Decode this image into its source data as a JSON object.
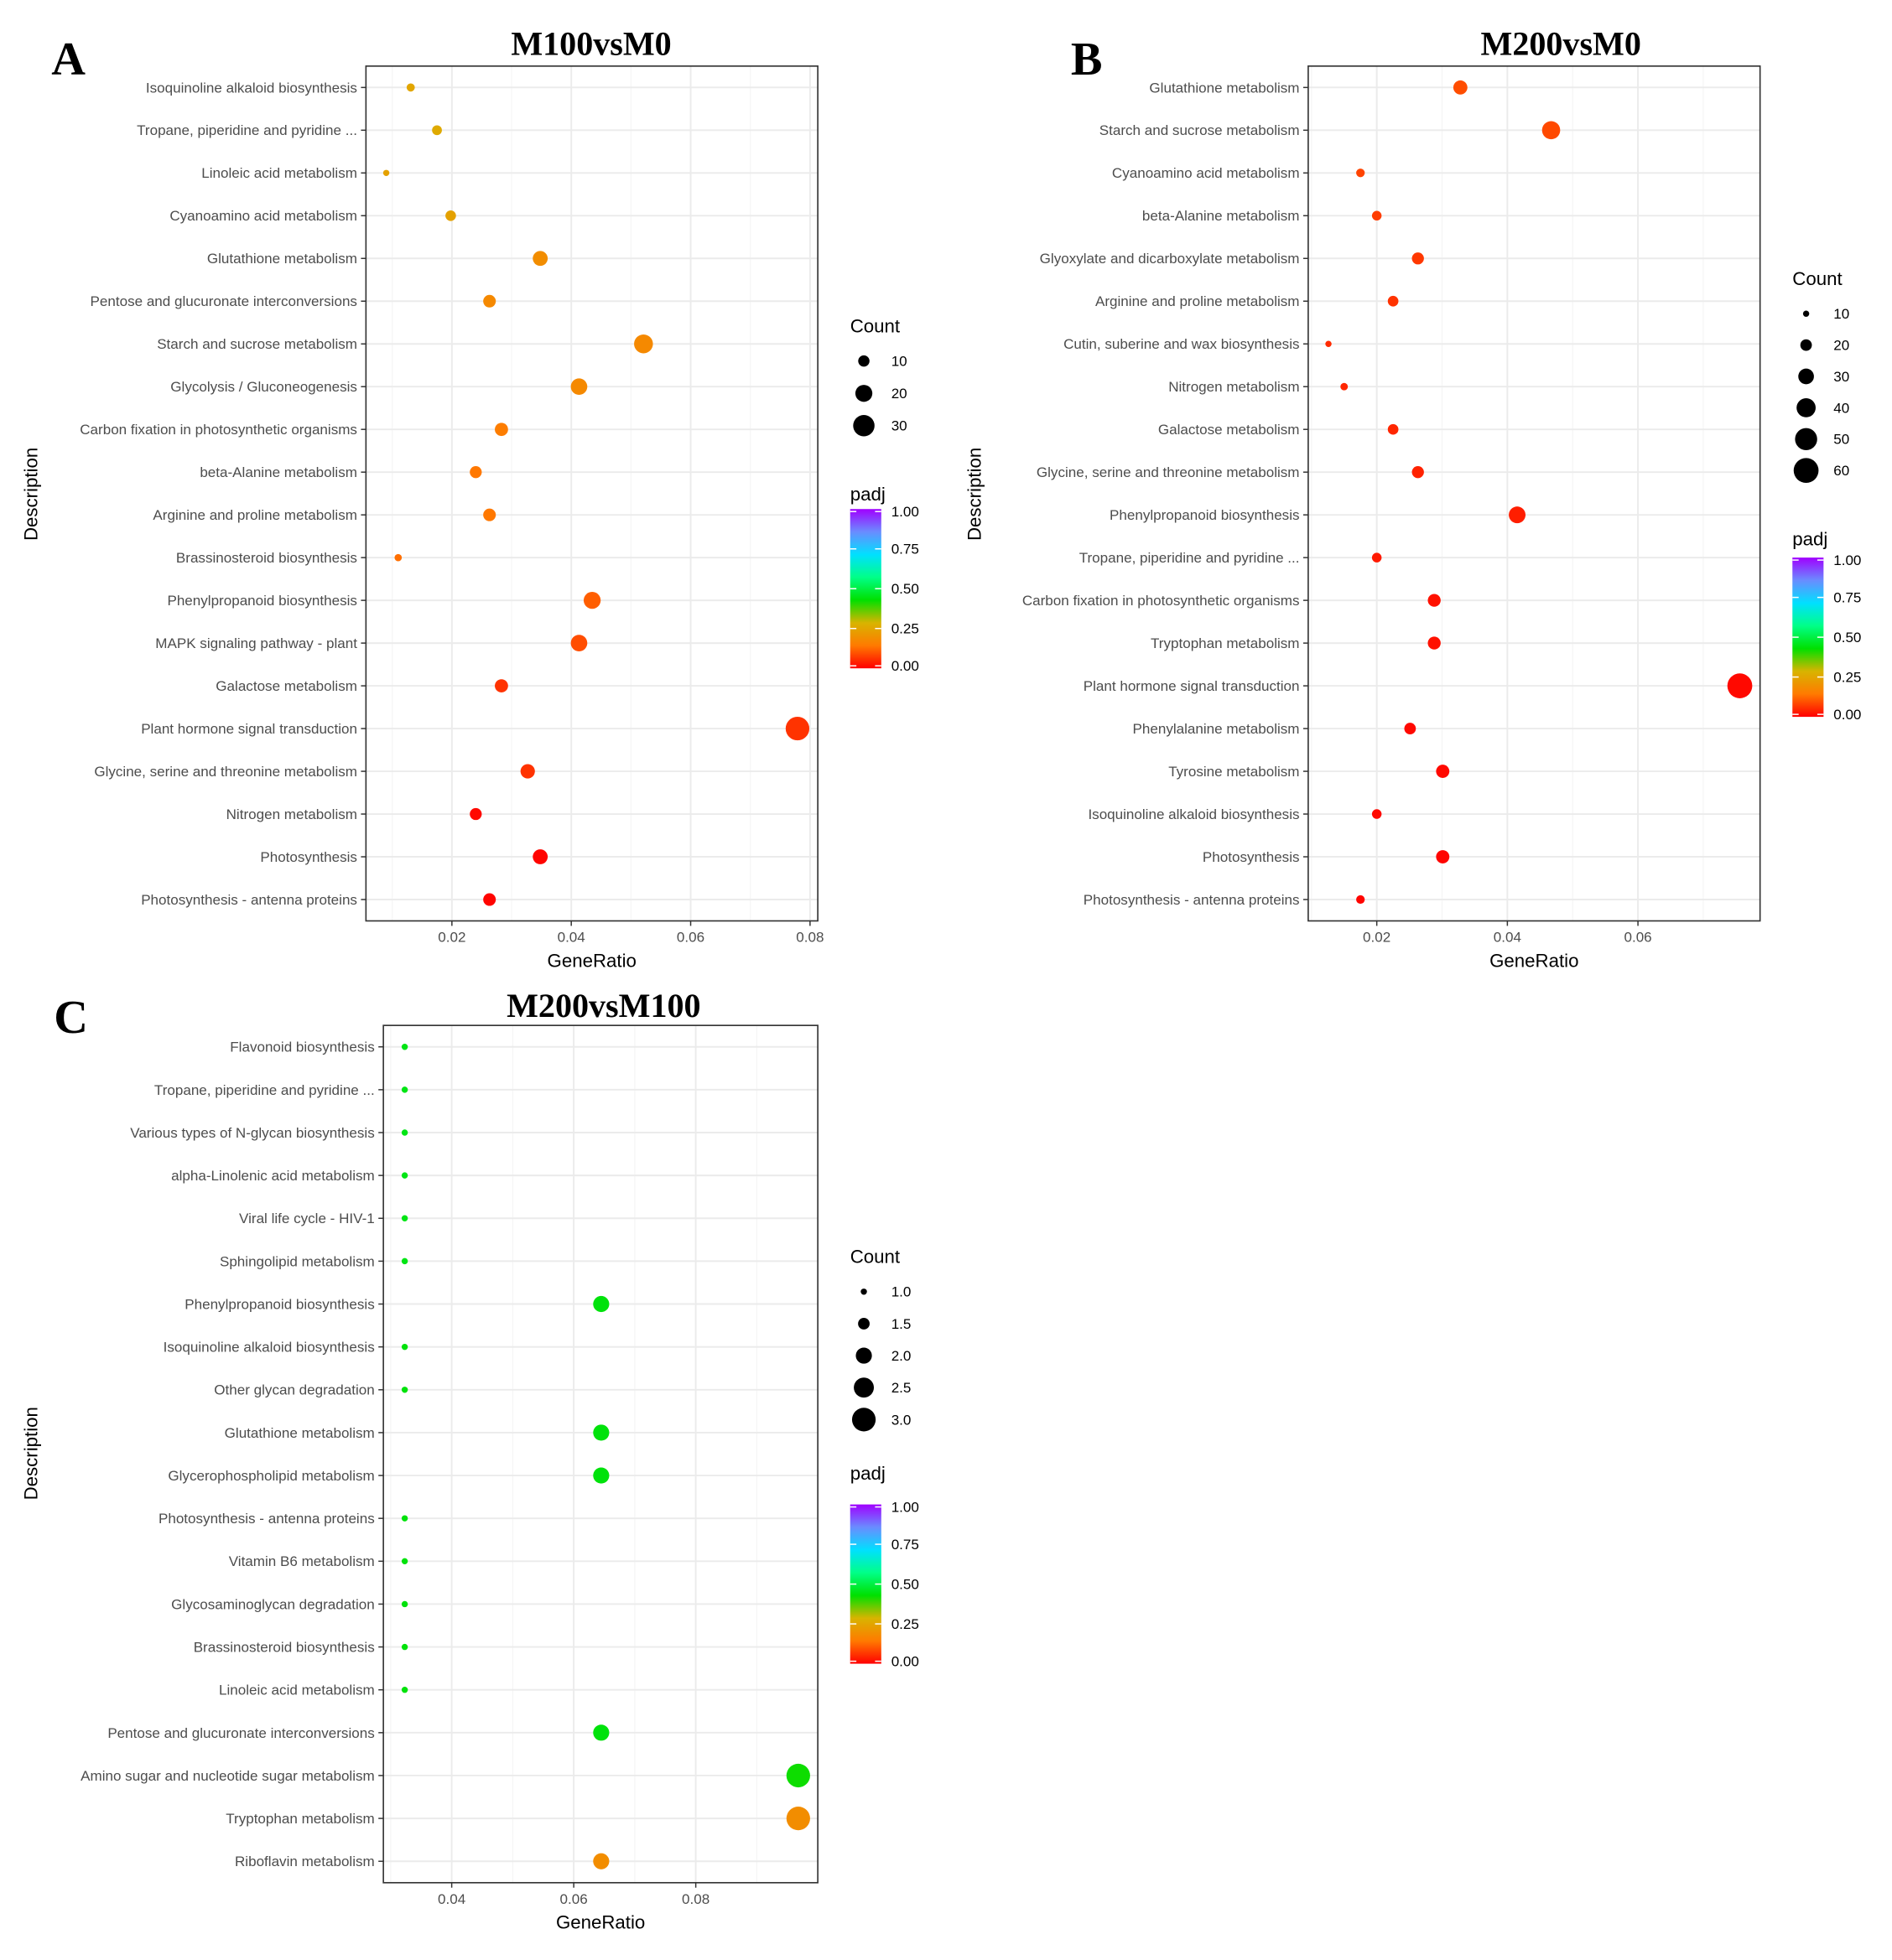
{
  "chart_data": [
    {
      "type": "scatter",
      "panel_label": "A",
      "title": "M100vsM0",
      "xlabel": "GeneRatio",
      "ylabel": "Description",
      "xlim": [
        0.0056,
        0.0813
      ],
      "xticks": [
        0.02,
        0.04,
        0.06,
        0.08
      ],
      "xtick_labels": [
        "0.02",
        "0.04",
        "0.06",
        "0.08"
      ],
      "grid": true,
      "legend_placement": "right",
      "size_legend": {
        "title": "Count",
        "breaks": [
          10,
          20,
          30
        ],
        "labels": [
          "10",
          "20",
          "30"
        ]
      },
      "color_legend": {
        "title": "padj",
        "breaks": [
          0,
          0.25,
          0.5,
          0.75,
          1
        ],
        "labels": [
          "0.00",
          "0.25",
          "0.50",
          "0.75",
          "1.00"
        ]
      },
      "categories": [
        "Isoquinoline alkaloid biosynthesis",
        "Tropane, piperidine and pyridine ...",
        "Linoleic acid metabolism",
        "Cyanoamino acid metabolism",
        "Glutathione metabolism",
        "Pentose and glucuronate interconversions",
        "Starch and sucrose metabolism",
        "Glycolysis / Gluconeogenesis",
        "Carbon fixation in photosynthetic organisms",
        "beta-Alanine metabolism",
        "Arginine and proline metabolism",
        "Brassinosteroid biosynthesis",
        "Phenylpropanoid biosynthesis",
        "MAPK signaling pathway - plant",
        "Galactose metabolism",
        "Plant hormone signal transduction",
        "Glycine, serine and threonine metabolism",
        "Nitrogen metabolism",
        "Photosynthesis",
        "Photosynthesis - antenna proteins"
      ],
      "gene_ratio": [
        0.0131,
        0.0175,
        0.009,
        0.0198,
        0.0348,
        0.0263,
        0.0521,
        0.0413,
        0.0283,
        0.024,
        0.0263,
        0.011,
        0.0435,
        0.0413,
        0.0283,
        0.0779,
        0.0327,
        0.024,
        0.0348,
        0.0263
      ],
      "count": [
        6,
        8,
        4,
        9,
        16,
        12,
        24,
        19,
        13,
        11,
        12,
        5,
        20,
        19,
        13,
        36,
        15,
        11,
        16,
        12
      ],
      "padj": [
        0.25,
        0.26,
        0.24,
        0.24,
        0.19,
        0.18,
        0.18,
        0.18,
        0.15,
        0.14,
        0.14,
        0.13,
        0.11,
        0.09,
        0.06,
        0.06,
        0.06,
        0.01,
        0.005,
        0.005
      ]
    },
    {
      "type": "scatter",
      "panel_label": "B",
      "title": "M200vsM0",
      "xlabel": "GeneRatio",
      "ylabel": "Description",
      "xlim": [
        0.0095,
        0.0787
      ],
      "xticks": [
        0.02,
        0.04,
        0.06
      ],
      "xtick_labels": [
        "0.02",
        "0.04",
        "0.06"
      ],
      "grid": true,
      "legend_placement": "right",
      "size_legend": {
        "title": "Count",
        "breaks": [
          10,
          20,
          30,
          40,
          50,
          60
        ],
        "labels": [
          "10",
          "20",
          "30",
          "40",
          "50",
          "60"
        ]
      },
      "color_legend": {
        "title": "padj",
        "breaks": [
          0,
          0.25,
          0.5,
          0.75,
          1
        ],
        "labels": [
          "0.00",
          "0.25",
          "0.50",
          "0.75",
          "1.00"
        ]
      },
      "categories": [
        "Glutathione metabolism",
        "Starch and sucrose metabolism",
        "Cyanoamino acid metabolism",
        "beta-Alanine metabolism",
        "Glyoxylate and dicarboxylate metabolism",
        "Arginine and proline metabolism",
        "Cutin, suberine and wax biosynthesis",
        "Nitrogen metabolism",
        "Galactose metabolism",
        "Glycine, serine and threonine metabolism",
        "Phenylpropanoid biosynthesis",
        "Tropane, piperidine and pyridine ...",
        "Carbon fixation in photosynthetic organisms",
        "Tryptophan metabolism",
        "Plant hormone signal transduction",
        "Phenylalanine metabolism",
        "Tyrosine metabolism",
        "Isoquinoline alkaloid biosynthesis",
        "Photosynthesis",
        "Photosynthesis - antenna proteins"
      ],
      "gene_ratio": [
        0.0328,
        0.0467,
        0.0175,
        0.02,
        0.0263,
        0.0225,
        0.0126,
        0.015,
        0.0225,
        0.0263,
        0.0415,
        0.02,
        0.0288,
        0.0288,
        0.0756,
        0.0251,
        0.0301,
        0.02,
        0.0301,
        0.0175
      ],
      "count": [
        26,
        37,
        14,
        16,
        21,
        18,
        10,
        12,
        18,
        21,
        33,
        16,
        23,
        23,
        60,
        20,
        24,
        16,
        24,
        14
      ],
      "padj": [
        0.09,
        0.085,
        0.08,
        0.07,
        0.065,
        0.06,
        0.05,
        0.045,
        0.045,
        0.04,
        0.035,
        0.03,
        0.02,
        0.02,
        0.01,
        0.01,
        0.01,
        0.01,
        0.005,
        0.005
      ]
    },
    {
      "type": "scatter",
      "panel_label": "C",
      "title": "M200vsM100",
      "xlabel": "GeneRatio",
      "ylabel": "Description",
      "xlim": [
        0.0288,
        0.1
      ],
      "xticks": [
        0.04,
        0.06,
        0.08
      ],
      "xtick_labels": [
        "0.04",
        "0.06",
        "0.08"
      ],
      "grid": true,
      "legend_placement": "right",
      "size_legend": {
        "title": "Count",
        "breaks": [
          1.0,
          1.5,
          2.0,
          2.5,
          3.0
        ],
        "labels": [
          "1.0",
          "1.5",
          "2.0",
          "2.5",
          "3.0"
        ]
      },
      "color_legend": {
        "title": "padj",
        "breaks": [
          0,
          0.25,
          0.5,
          0.75,
          1
        ],
        "labels": [
          "0.00",
          "0.25",
          "0.50",
          "0.75",
          "1.00"
        ]
      },
      "categories": [
        "Flavonoid biosynthesis",
        "Tropane, piperidine and pyridine ...",
        "Various types of N-glycan biosynthesis",
        "alpha-Linolenic acid metabolism",
        "Viral life cycle - HIV-1",
        "Sphingolipid metabolism",
        "Phenylpropanoid biosynthesis",
        "Isoquinoline alkaloid biosynthesis",
        "Other glycan degradation",
        "Glutathione metabolism",
        "Glycerophospholipid metabolism",
        "Photosynthesis - antenna proteins",
        "Vitamin B6 metabolism",
        "Glycosaminoglycan degradation",
        "Brassinosteroid biosynthesis",
        "Linoleic acid metabolism",
        "Pentose and glucuronate interconversions",
        "Amino sugar and nucleotide sugar metabolism",
        "Tryptophan metabolism",
        "Riboflavin metabolism"
      ],
      "gene_ratio": [
        0.0323,
        0.0323,
        0.0323,
        0.0323,
        0.0323,
        0.0323,
        0.0645,
        0.0323,
        0.0323,
        0.0645,
        0.0645,
        0.0323,
        0.0323,
        0.0323,
        0.0323,
        0.0323,
        0.0645,
        0.0968,
        0.0968,
        0.0645
      ],
      "count": [
        1,
        1,
        1,
        1,
        1,
        1,
        2,
        1,
        1,
        2,
        2,
        1,
        1,
        1,
        1,
        1,
        2,
        3,
        3,
        2
      ],
      "padj": [
        0.45,
        0.45,
        0.45,
        0.45,
        0.45,
        0.45,
        0.44,
        0.44,
        0.44,
        0.44,
        0.44,
        0.44,
        0.44,
        0.44,
        0.44,
        0.44,
        0.44,
        0.42,
        0.19,
        0.19
      ]
    }
  ],
  "colors": {
    "padj_scale": [
      "#ff0000",
      "#ff7a00",
      "#d8b400",
      "#00e000",
      "#00ff88",
      "#00e0ff",
      "#6a8cff",
      "#a000ff"
    ],
    "grid_major": "#ebebeb",
    "grid_minor": "#f5f5f5"
  }
}
